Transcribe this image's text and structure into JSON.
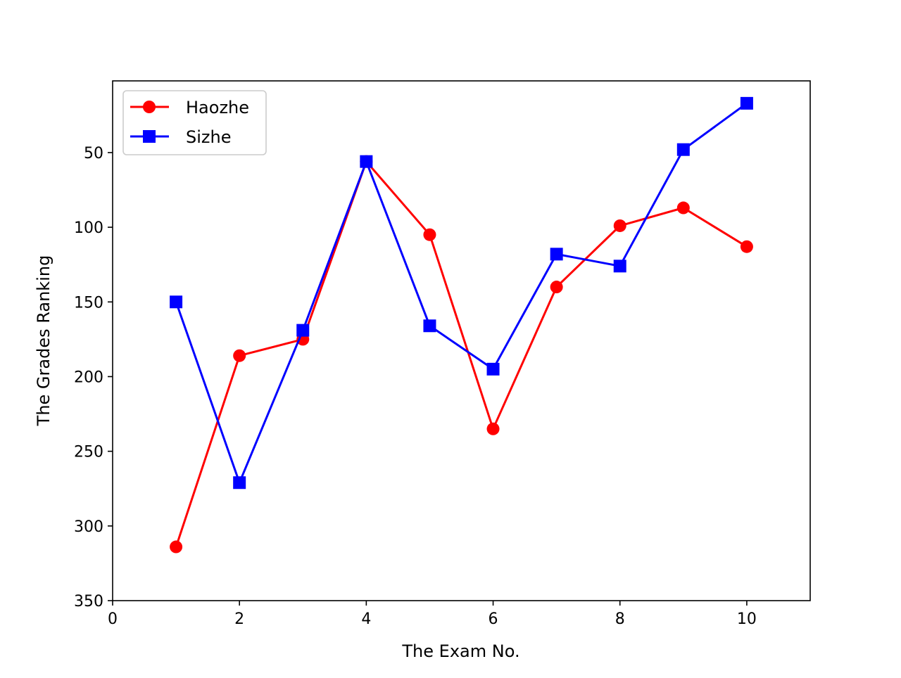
{
  "chart_data": {
    "type": "line",
    "title": "",
    "xlabel": "The Exam No.",
    "ylabel": "The Grades Ranking",
    "x": [
      1,
      2,
      3,
      4,
      5,
      6,
      7,
      8,
      9,
      10
    ],
    "xlim": [
      0,
      11
    ],
    "ylim": [
      350,
      2
    ],
    "y_inverted": true,
    "x_ticks": [
      0,
      2,
      4,
      6,
      8,
      10
    ],
    "y_ticks": [
      50,
      100,
      150,
      200,
      250,
      300,
      350
    ],
    "grid": false,
    "legend_position": "top-left",
    "series": [
      {
        "name": "Haozhe",
        "color": "#ff0000",
        "marker": "circle",
        "values": [
          314,
          186,
          175,
          56,
          105,
          235,
          140,
          99,
          87,
          113
        ]
      },
      {
        "name": "Sizhe",
        "color": "#0000ff",
        "marker": "square",
        "values": [
          150,
          271,
          169,
          56,
          166,
          195,
          118,
          126,
          48,
          17
        ]
      }
    ]
  }
}
